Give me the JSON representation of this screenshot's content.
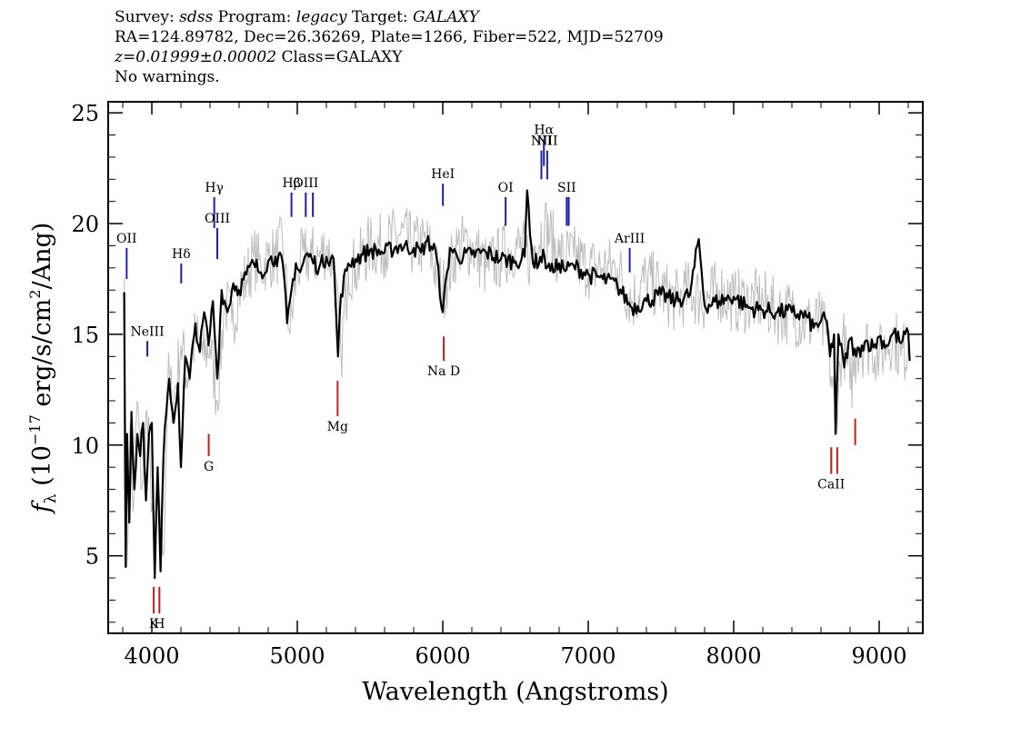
{
  "header": {
    "line1": {
      "survey_label": "Survey:",
      "survey": "sdss",
      "program_label": "Program:",
      "program": "legacy",
      "target_label": "Target:",
      "target": "GALAXY"
    },
    "line2": "RA=124.89782, Dec=26.36269, Plate=1266, Fiber=522, MJD=52709",
    "line3": {
      "redshift": "z=0.01999±0.00002",
      "class": "Class=GALAXY"
    },
    "line4": "No warnings."
  },
  "chart_data": {
    "type": "line",
    "xlabel": "Wavelength (Angstroms)",
    "ylabel_prefix": "f",
    "ylabel_sub": "λ",
    "ylabel_mid": " (10",
    "ylabel_exp": "−17",
    "ylabel_units": " erg/s/cm",
    "ylabel_exp2": "2",
    "ylabel_tail": "/Ang)",
    "xlim": [
      3700,
      9300
    ],
    "ylim": [
      1.5,
      25.5
    ],
    "xticks": [
      4000,
      5000,
      6000,
      7000,
      8000,
      9000
    ],
    "xtick_labels": [
      "4000",
      "5000",
      "6000",
      "7000",
      "8000",
      "9000"
    ],
    "yticks": [
      5,
      10,
      15,
      20,
      25
    ],
    "ytick_labels": [
      "5",
      "10",
      "15",
      "20",
      "25"
    ],
    "colors": {
      "smoothed": "#000000",
      "raw": "#bdbdbd",
      "emission": "#1e1eb4",
      "absorption": "#c81e1e"
    },
    "series": [
      {
        "style": "raw-noisy",
        "x": [
          3810,
          3830,
          3850,
          3870,
          3900,
          3930,
          3960,
          3990,
          4020,
          4050,
          4080,
          4110,
          4150,
          4200,
          4250,
          4300,
          4350,
          4400,
          4450,
          4500,
          4550,
          4600,
          4650,
          4700,
          4750,
          4800,
          4850,
          4900,
          4950,
          5000,
          5050,
          5100,
          5150,
          5200,
          5250,
          5300,
          5350,
          5400,
          5500,
          5600,
          5700,
          5800,
          5900,
          6000,
          6100,
          6200,
          6300,
          6400,
          6500,
          6600,
          6700,
          6800,
          6900,
          7000,
          7100,
          7200,
          7300,
          7400,
          7500,
          7600,
          7700,
          7800,
          7900,
          8000,
          8100,
          8200,
          8300,
          8400,
          8500,
          8600,
          8650,
          8700,
          8750,
          8800,
          8850,
          8900,
          8950,
          9000,
          9050,
          9100,
          9150,
          9200
        ],
        "y": [
          17.5,
          4.5,
          11,
          7,
          12,
          8,
          11.5,
          9,
          4.5,
          8,
          5,
          13,
          12,
          14.5,
          13,
          15,
          14,
          14.5,
          12,
          16.5,
          15.5,
          17,
          17.5,
          18.5,
          18,
          18.5,
          18.5,
          19,
          15,
          18,
          18.5,
          18.5,
          18.5,
          19,
          18,
          14,
          18,
          18,
          19,
          19,
          19.5,
          19,
          19,
          17,
          19,
          19,
          18,
          18.5,
          19,
          18.5,
          20,
          18.5,
          18.5,
          18,
          18,
          18,
          16.5,
          17.5,
          17,
          16.5,
          17,
          16.5,
          17,
          16.5,
          16.5,
          16.5,
          16,
          16,
          15.5,
          15.5,
          14.5,
          11,
          15,
          12.5,
          14.5,
          14.5,
          14.5,
          14,
          14.5,
          15,
          14,
          14.5
        ]
      },
      {
        "style": "smoothed",
        "x": [
          3810,
          3820,
          3830,
          3845,
          3860,
          3880,
          3900,
          3920,
          3940,
          3960,
          3980,
          4000,
          4020,
          4040,
          4060,
          4080,
          4100,
          4120,
          4150,
          4180,
          4200,
          4230,
          4260,
          4300,
          4330,
          4360,
          4390,
          4420,
          4450,
          4480,
          4520,
          4560,
          4600,
          4650,
          4700,
          4750,
          4800,
          4850,
          4900,
          4930,
          4960,
          4990,
          5020,
          5060,
          5100,
          5150,
          5200,
          5250,
          5280,
          5300,
          5350,
          5400,
          5450,
          5500,
          5600,
          5700,
          5800,
          5850,
          5890,
          5950,
          6000,
          6050,
          6100,
          6200,
          6300,
          6400,
          6500,
          6563,
          6580,
          6620,
          6700,
          6716,
          6730,
          6760,
          6800,
          6850,
          6900,
          7000,
          7100,
          7200,
          7300,
          7400,
          7500,
          7600,
          7700,
          7760,
          7800,
          7900,
          8000,
          8100,
          8200,
          8300,
          8400,
          8500,
          8550,
          8600,
          8640,
          8662,
          8690,
          8700,
          8720,
          8760,
          8800,
          8842,
          8880,
          8920,
          8960,
          9000,
          9050,
          9100,
          9150,
          9200,
          9210
        ],
        "y": [
          16.9,
          4.5,
          10.5,
          6.5,
          11.5,
          8,
          10.5,
          9.5,
          11,
          7.5,
          10.5,
          11,
          4,
          9,
          4.3,
          9.5,
          11.5,
          13,
          11,
          12.8,
          9,
          14,
          13,
          15.5,
          14.2,
          16,
          14.5,
          16.5,
          13,
          17,
          16,
          17.3,
          17,
          17.7,
          18.2,
          17.8,
          18.3,
          18.5,
          18.2,
          15.5,
          17,
          18.2,
          17.8,
          18.6,
          18.4,
          18,
          18.5,
          18.4,
          14,
          16.8,
          18.2,
          18.4,
          18.6,
          18.8,
          18.7,
          19,
          18.9,
          18.7,
          19.2,
          18.8,
          16,
          18.9,
          18.5,
          18.6,
          18.7,
          18.4,
          18.3,
          18.5,
          21.5,
          18.2,
          18.5,
          18,
          18.2,
          17.8,
          18.2,
          17.9,
          18.1,
          17.7,
          17.5,
          17.2,
          16.2,
          16.5,
          16.8,
          16.5,
          16.8,
          19.3,
          16.3,
          16.5,
          16.7,
          16.2,
          16.1,
          16,
          16,
          15.8,
          15.3,
          15.6,
          15.6,
          14,
          15,
          10.5,
          15,
          13.5,
          14.8,
          14,
          14.5,
          14.7,
          14.4,
          14.9,
          14.5,
          15.1,
          14.6,
          15.1,
          13.8
        ]
      }
    ],
    "emission_lines": [
      {
        "label": "OII",
        "x": 3827,
        "y1": 17.5,
        "y2": 18.9
      },
      {
        "label": "NeIII",
        "x": 3969,
        "y1": 14.0,
        "y2": 14.7
      },
      {
        "label": "Hδ",
        "x": 4202,
        "y1": 17.3,
        "y2": 18.2
      },
      {
        "label": "Hγ",
        "x": 4429,
        "y1": 19.8,
        "y2": 21.2
      },
      {
        "label": "OIII",
        "x": 4450,
        "y1": 18.4,
        "y2": 19.8
      },
      {
        "label": "Hβ",
        "x": 4960,
        "y1": 20.3,
        "y2": 21.4
      },
      {
        "label": "OIII",
        "x": 5058,
        "y1": 20.3,
        "y2": 21.4
      },
      {
        "label": "",
        "x": 5107,
        "y1": 20.3,
        "y2": 21.4
      },
      {
        "label": "HeI",
        "x": 6001,
        "y1": 20.8,
        "y2": 21.8
      },
      {
        "label": "OI",
        "x": 6432,
        "y1": 19.9,
        "y2": 21.2
      },
      {
        "label": "NII",
        "x": 6678,
        "y1": 22.0,
        "y2": 23.3
      },
      {
        "label": "Hα",
        "x": 6695,
        "y1": 22.6,
        "y2": 23.8
      },
      {
        "label": "NII",
        "x": 6718,
        "y1": 22.0,
        "y2": 23.3
      },
      {
        "label": "SII",
        "x": 6852,
        "y1": 19.9,
        "y2": 21.2
      },
      {
        "label": "",
        "x": 6866,
        "y1": 19.9,
        "y2": 21.2
      },
      {
        "label": "ArIII",
        "x": 7285,
        "y1": 17.8,
        "y2": 18.9
      }
    ],
    "absorption_lines": [
      {
        "label": "K",
        "x": 4013,
        "y1": 2.4,
        "y2": 3.6
      },
      {
        "label": "H",
        "x": 4052,
        "y1": 2.4,
        "y2": 3.6
      },
      {
        "label": "G",
        "x": 4391,
        "y1": 9.5,
        "y2": 10.5
      },
      {
        "label": "Mg",
        "x": 5277,
        "y1": 11.3,
        "y2": 12.9
      },
      {
        "label": "Na D",
        "x": 6006,
        "y1": 13.8,
        "y2": 14.9
      },
      {
        "label": "CaII",
        "x": 8670,
        "y1": 8.7,
        "y2": 9.9
      },
      {
        "label": "",
        "x": 8712,
        "y1": 8.7,
        "y2": 9.9
      },
      {
        "label": "",
        "x": 8835,
        "y1": 10.0,
        "y2": 11.2
      }
    ]
  }
}
